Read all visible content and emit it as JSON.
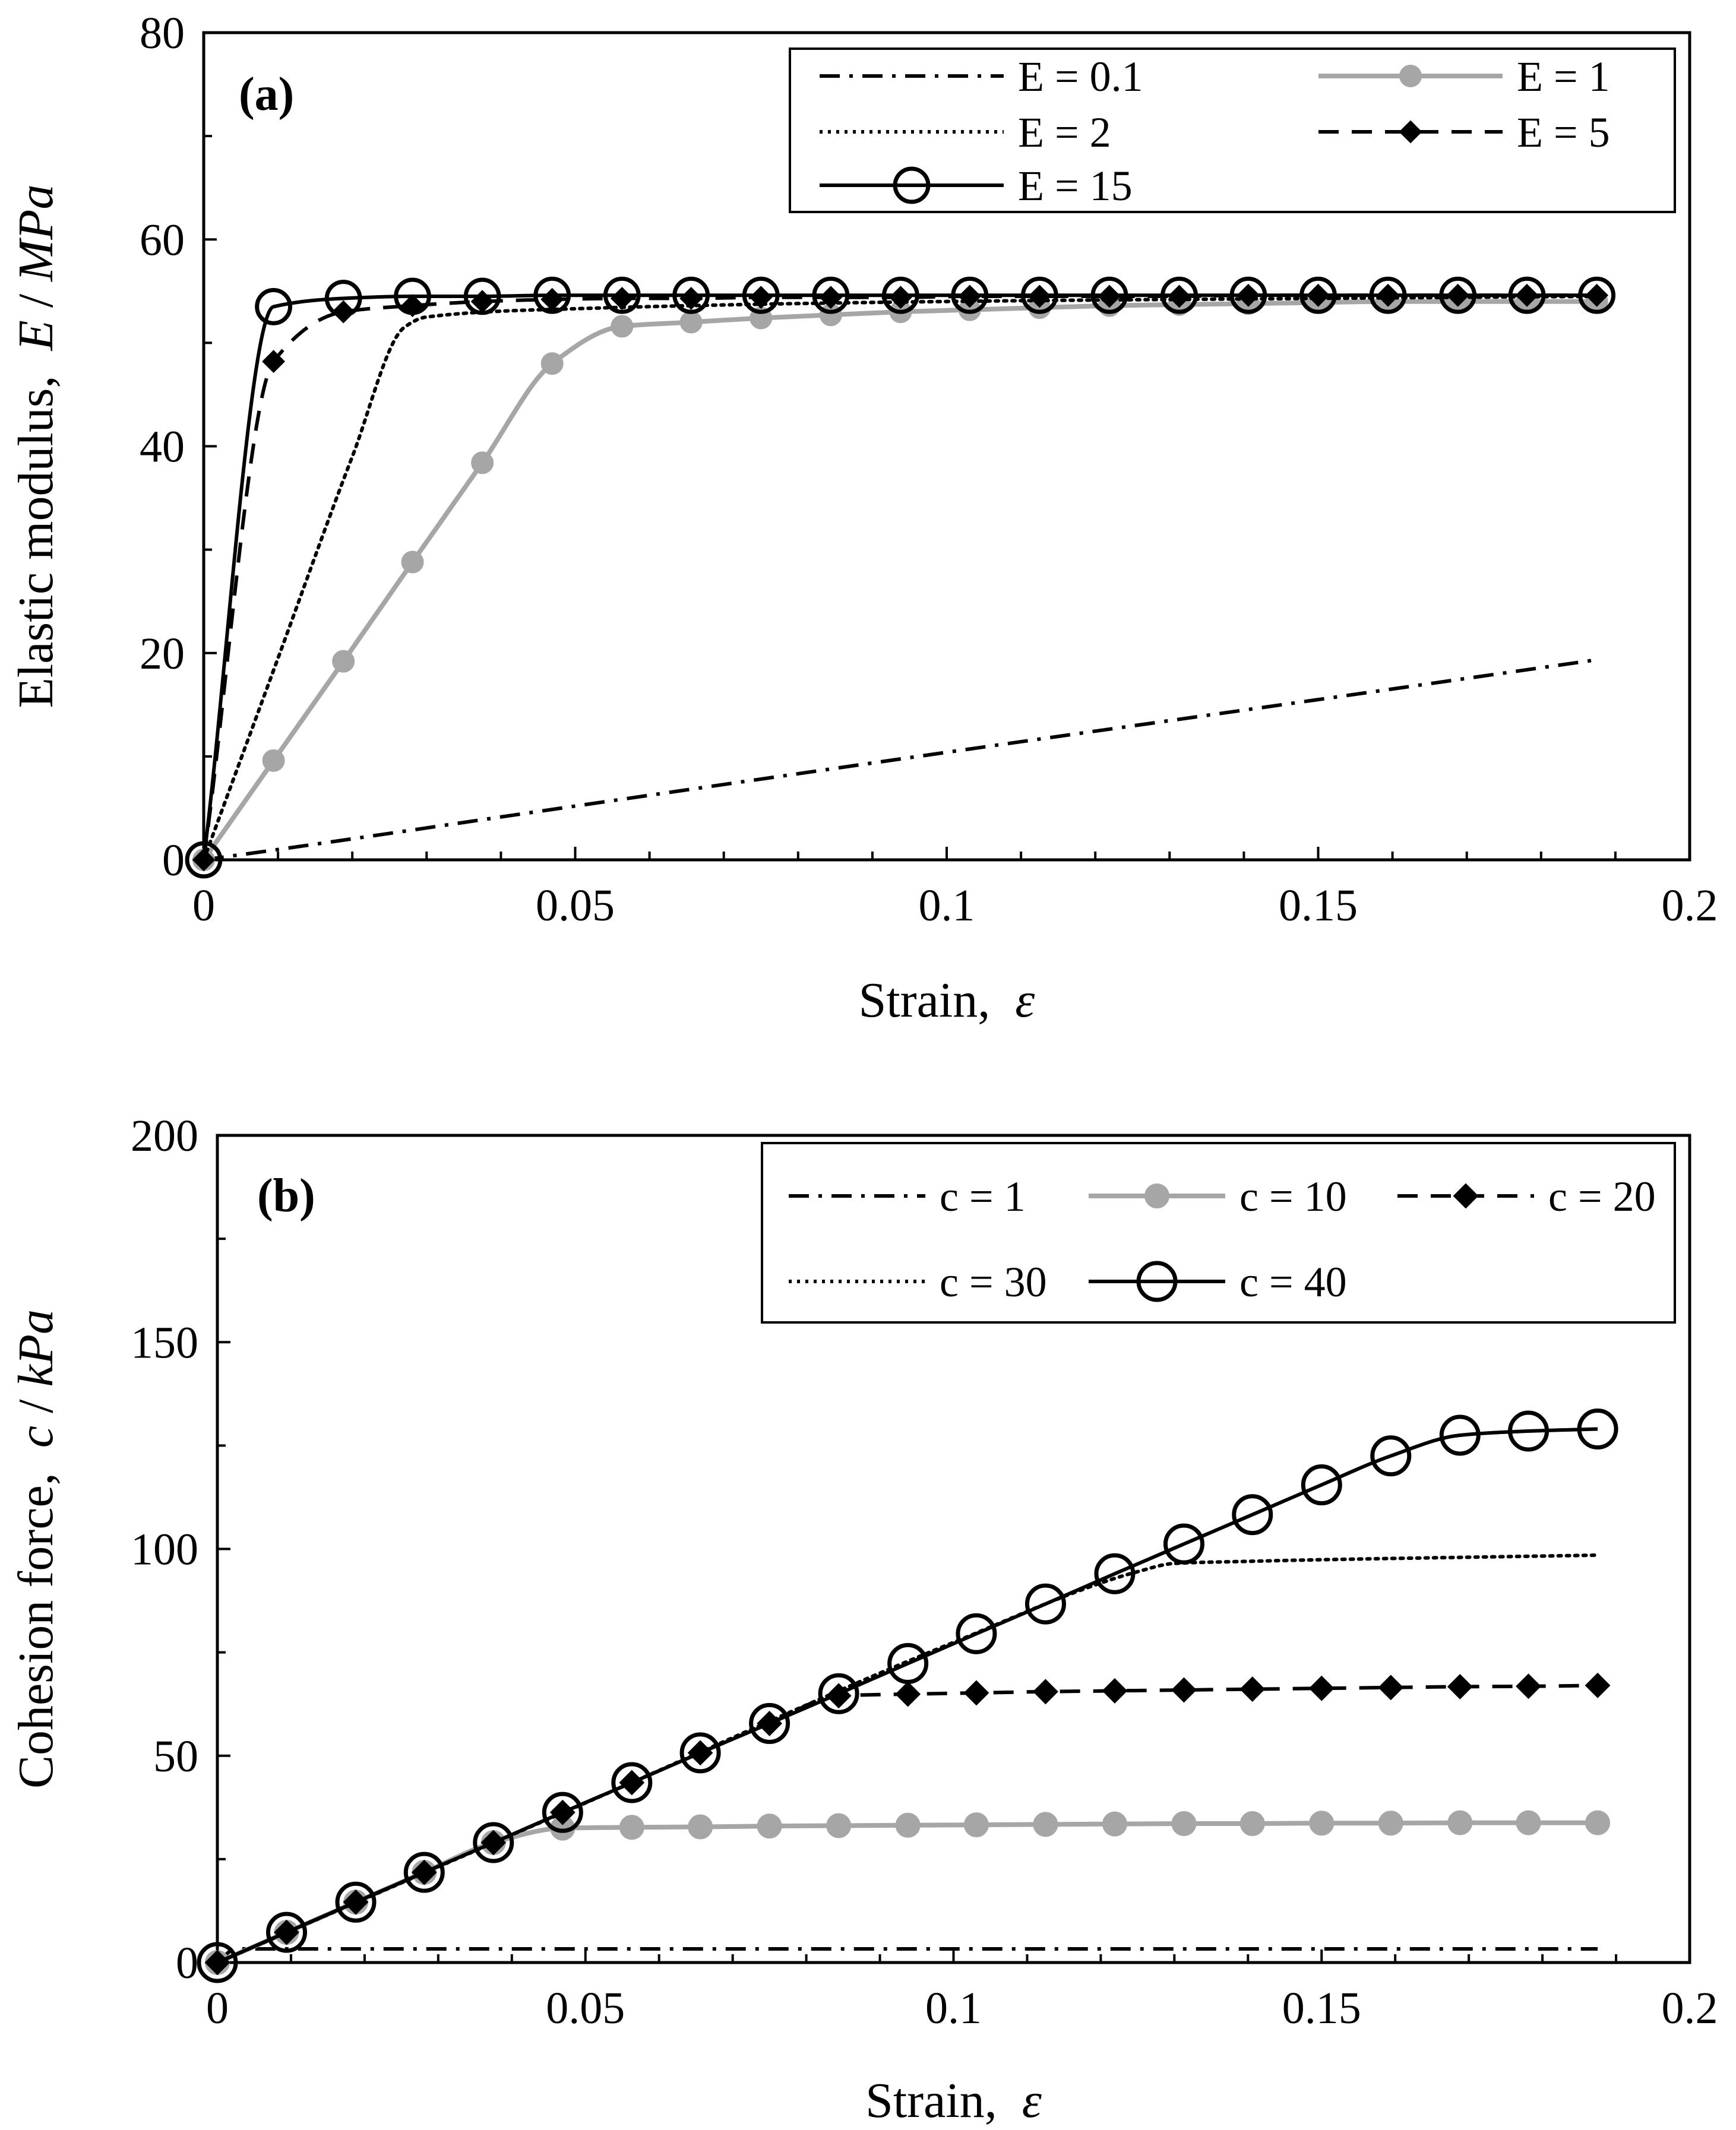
{
  "chart_data": [
    {
      "type": "line",
      "panel_label": "(a)",
      "xlabel": "Strain,",
      "xlabel_symbol": "ε",
      "ylabel": "Elastic modulus,",
      "ylabel_symbol": "E",
      "ylabel_unit": " / MPa",
      "xlim": [
        0,
        0.2
      ],
      "ylim": [
        0,
        80
      ],
      "x_ticks": [
        0,
        0.05,
        0.1,
        0.15,
        0.2
      ],
      "x_tick_labels": [
        "0",
        "0.05",
        "0.1",
        "0.15",
        "0.2"
      ],
      "y_ticks": [
        0,
        20,
        40,
        60,
        80
      ],
      "y_tick_labels": [
        "0",
        "20",
        "40",
        "60",
        "80"
      ],
      "legend_position": "top-right",
      "series": [
        {
          "name": "E = 0.1",
          "style": "dashdot",
          "marker": "none",
          "color": "#000000",
          "x": [
            0,
            0.01,
            0.05,
            0.1,
            0.15,
            0.187
          ],
          "y": [
            0,
            1.0,
            5.2,
            10.4,
            15.5,
            19.3
          ]
        },
        {
          "name": "E = 1",
          "style": "solid",
          "marker": "filled-circle",
          "color": "#a6a6a6",
          "x": [
            0,
            0.0094,
            0.0188,
            0.0281,
            0.0375,
            0.0469,
            0.0563,
            0.0656,
            0.075,
            0.0844,
            0.0938,
            0.1031,
            0.1125,
            0.1219,
            0.1313,
            0.1406,
            0.15,
            0.1594,
            0.1688,
            0.1781,
            0.1875
          ],
          "y": [
            0,
            9.6,
            19.2,
            28.8,
            38.4,
            48.0,
            51.6,
            52.0,
            52.4,
            52.7,
            53.0,
            53.2,
            53.4,
            53.6,
            53.7,
            53.8,
            53.9,
            54.0,
            54.0,
            54.0,
            54.0
          ]
        },
        {
          "name": "E = 2",
          "style": "dotted",
          "marker": "none",
          "color": "#000000",
          "x": [
            0,
            0.01,
            0.02,
            0.027,
            0.03,
            0.05,
            0.1,
            0.15,
            0.1875
          ],
          "y": [
            0,
            19.5,
            39.0,
            51.5,
            52.5,
            53.3,
            54.0,
            54.3,
            54.5
          ]
        },
        {
          "name": "E = 5",
          "style": "dashed",
          "marker": "filled-diamond",
          "color": "#000000",
          "x": [
            0,
            0.0094,
            0.0188,
            0.0281,
            0.0375,
            0.0469,
            0.0563,
            0.0656,
            0.075,
            0.0844,
            0.0938,
            0.1031,
            0.1125,
            0.1219,
            0.1313,
            0.1406,
            0.15,
            0.1594,
            0.1688,
            0.1781,
            0.1875
          ],
          "y": [
            0,
            48.2,
            53.0,
            53.6,
            54.0,
            54.2,
            54.3,
            54.3,
            54.4,
            54.4,
            54.4,
            54.5,
            54.5,
            54.5,
            54.5,
            54.6,
            54.6,
            54.6,
            54.6,
            54.6,
            54.6
          ]
        },
        {
          "name": "E = 15",
          "style": "solid",
          "marker": "open-circle",
          "color": "#000000",
          "x": [
            0,
            0.0094,
            0.0188,
            0.0281,
            0.0375,
            0.0469,
            0.0563,
            0.0656,
            0.075,
            0.0844,
            0.0938,
            0.1031,
            0.1125,
            0.1219,
            0.1313,
            0.1406,
            0.15,
            0.1594,
            0.1688,
            0.1781,
            0.1875
          ],
          "y": [
            0,
            53.5,
            54.3,
            54.5,
            54.5,
            54.6,
            54.6,
            54.6,
            54.6,
            54.6,
            54.6,
            54.6,
            54.6,
            54.6,
            54.6,
            54.6,
            54.6,
            54.6,
            54.6,
            54.6,
            54.6
          ]
        }
      ]
    },
    {
      "type": "line",
      "panel_label": "(b)",
      "xlabel": "Strain,",
      "xlabel_symbol": "ε",
      "ylabel": "Cohesion force,",
      "ylabel_symbol": "c",
      "ylabel_unit": " / kPa",
      "xlim": [
        0,
        0.2
      ],
      "ylim": [
        0,
        200
      ],
      "x_ticks": [
        0,
        0.05,
        0.1,
        0.15,
        0.2
      ],
      "x_tick_labels": [
        "0",
        "0.05",
        "0.1",
        "0.15",
        "0.2"
      ],
      "y_ticks": [
        0,
        50,
        100,
        150,
        200
      ],
      "y_tick_labels": [
        "0",
        "50",
        "100",
        "150",
        "200"
      ],
      "legend_position": "top-right",
      "series": [
        {
          "name": "c = 1",
          "style": "dashdot",
          "marker": "none",
          "color": "#000000",
          "x": [
            0,
            0.0025,
            0.05,
            0.1,
            0.15,
            0.1875
          ],
          "y": [
            0,
            3.3,
            3.3,
            3.3,
            3.3,
            3.3
          ]
        },
        {
          "name": "c = 10",
          "style": "solid",
          "marker": "filled-circle",
          "color": "#a6a6a6",
          "x": [
            0,
            0.0094,
            0.0188,
            0.0281,
            0.0375,
            0.0469,
            0.0563,
            0.0656,
            0.075,
            0.0844,
            0.0938,
            0.1031,
            0.1125,
            0.1219,
            0.1313,
            0.1406,
            0.15,
            0.1594,
            0.1688,
            0.1781,
            0.1875
          ],
          "y": [
            0,
            7.3,
            14.6,
            21.8,
            29.0,
            32.5,
            32.7,
            32.8,
            33.0,
            33.1,
            33.2,
            33.3,
            33.4,
            33.5,
            33.6,
            33.6,
            33.7,
            33.7,
            33.8,
            33.8,
            33.8
          ]
        },
        {
          "name": "c = 20",
          "style": "dashed",
          "marker": "filled-diamond",
          "color": "#000000",
          "x": [
            0,
            0.0094,
            0.0188,
            0.0281,
            0.0375,
            0.0469,
            0.0563,
            0.0656,
            0.075,
            0.0844,
            0.0938,
            0.1031,
            0.1125,
            0.1219,
            0.1313,
            0.1406,
            0.15,
            0.1594,
            0.1688,
            0.1781,
            0.1875
          ],
          "y": [
            0,
            7.3,
            14.6,
            21.8,
            29.0,
            36.3,
            43.5,
            50.7,
            57.8,
            64.5,
            64.9,
            65.2,
            65.5,
            65.7,
            65.9,
            66.1,
            66.3,
            66.5,
            66.7,
            66.8,
            67.0
          ]
        },
        {
          "name": "c = 30",
          "style": "dotted",
          "marker": "none",
          "color": "#000000",
          "x": [
            0,
            0.05,
            0.1,
            0.125,
            0.13,
            0.14,
            0.15,
            0.17,
            0.1875
          ],
          "y": [
            0,
            38.6,
            77.4,
            94.5,
            96.5,
            97.0,
            97.4,
            98.0,
            98.5
          ]
        },
        {
          "name": "c = 40",
          "style": "solid",
          "marker": "open-circle",
          "color": "#000000",
          "x": [
            0,
            0.0094,
            0.0188,
            0.0281,
            0.0375,
            0.0469,
            0.0563,
            0.0656,
            0.075,
            0.0844,
            0.0938,
            0.1031,
            0.1125,
            0.1219,
            0.1313,
            0.1406,
            0.15,
            0.1594,
            0.1688,
            0.1781,
            0.1875
          ],
          "y": [
            0,
            7.3,
            14.6,
            21.8,
            29.0,
            36.3,
            43.5,
            50.7,
            57.8,
            65.0,
            72.3,
            79.5,
            86.7,
            94.0,
            101.2,
            108.3,
            115.5,
            122.5,
            127.5,
            128.5,
            129.0
          ]
        }
      ]
    }
  ]
}
